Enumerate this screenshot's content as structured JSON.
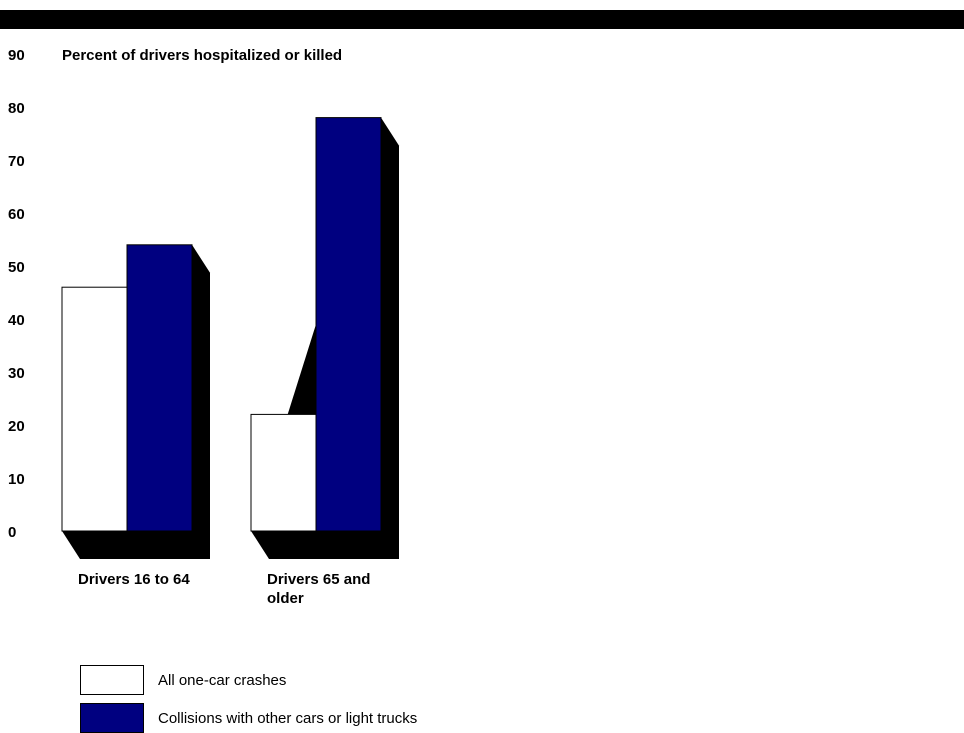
{
  "chart_data": {
    "type": "bar",
    "ylabel": "Percent of drivers hospitalized or killed",
    "categories": [
      "Drivers 16 to 64",
      "Drivers 65 and older"
    ],
    "category_lines": [
      [
        "Drivers 16 to 64"
      ],
      [
        "Drivers 65 and",
        "older"
      ]
    ],
    "series": [
      {
        "name": "All one-car crashes",
        "values": [
          46,
          22
        ]
      },
      {
        "name": "Collisions with other cars or light trucks",
        "values": [
          54,
          78
        ]
      }
    ],
    "colors": [
      "#ffffff",
      "#000080"
    ],
    "shadow_color": "#000000",
    "ylim": [
      0,
      90
    ],
    "yticks": [
      0,
      10,
      20,
      30,
      40,
      50,
      60,
      70,
      80,
      90
    ],
    "grid": false,
    "legend_placement": "bottom-left"
  }
}
